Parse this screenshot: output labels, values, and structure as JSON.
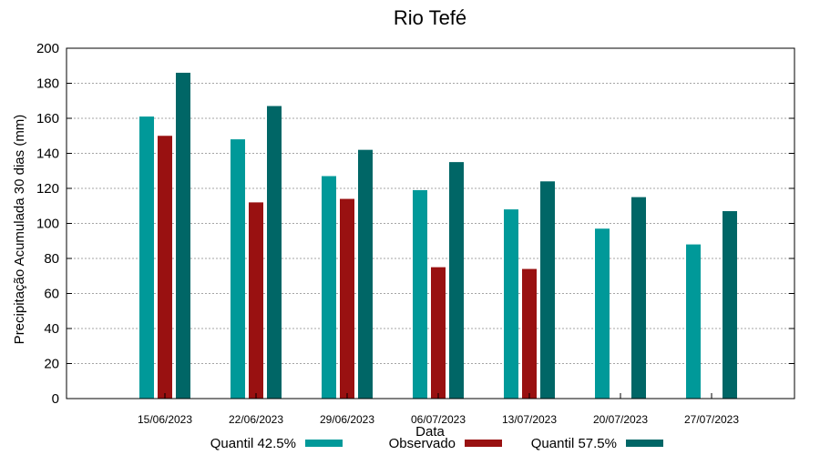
{
  "chart_data": {
    "type": "bar",
    "title": "Rio Tefé",
    "xlabel": "Data",
    "ylabel": "Precipitação Acumulada 30 dias (mm)",
    "ylim": [
      0,
      200
    ],
    "yticks": [
      0,
      20,
      40,
      60,
      80,
      100,
      120,
      140,
      160,
      180,
      200
    ],
    "grid": true,
    "legend_position": "bottom",
    "categories": [
      "15/06/2023",
      "22/06/2023",
      "29/06/2023",
      "06/07/2023",
      "13/07/2023",
      "20/07/2023",
      "27/07/2023"
    ],
    "series": [
      {
        "name": "Quantil 42.5%",
        "color": "#009999",
        "values": [
          161,
          148,
          127,
          119,
          108,
          97,
          88
        ]
      },
      {
        "name": "Observado",
        "color": "#991111",
        "values": [
          150,
          112,
          114,
          75,
          74,
          null,
          null
        ]
      },
      {
        "name": "Quantil 57.5%",
        "color": "#006666",
        "values": [
          186,
          167,
          142,
          135,
          124,
          115,
          107
        ]
      }
    ]
  }
}
